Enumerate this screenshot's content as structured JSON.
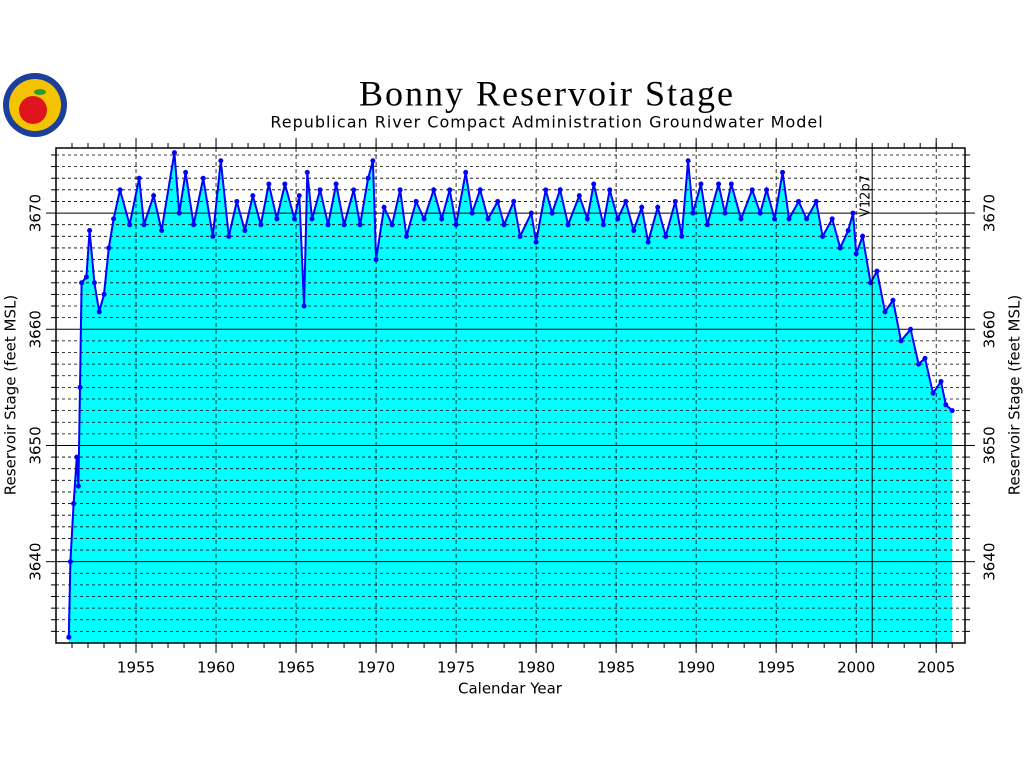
{
  "chart_data": {
    "type": "line",
    "title": "Bonny Reservoir Stage",
    "subtitle": "Republican River Compact Administration Groundwater Model",
    "x_label": "Calendar Year",
    "y_label": "Reservoir Stage (feet MSL)",
    "color": "#0000ff",
    "fill_color": "#00ffff",
    "grid": true,
    "xlim": [
      1950,
      2006.8
    ],
    "ylim": [
      3633,
      3675.6
    ],
    "xticks": [
      1955,
      1960,
      1965,
      1970,
      1975,
      1980,
      1985,
      1990,
      1995,
      2000,
      2005
    ],
    "yticks": [
      3640,
      3650,
      3660,
      3670
    ],
    "xticks_minor": [
      1951,
      1952,
      1953,
      1954,
      1955,
      1956,
      1957,
      1958,
      1959,
      1960,
      1961,
      1962,
      1963,
      1964,
      1965,
      1966,
      1967,
      1968,
      1969,
      1970,
      1971,
      1972,
      1973,
      1974,
      1975,
      1976,
      1977,
      1978,
      1979,
      1980,
      1981,
      1982,
      1983,
      1984,
      1985,
      1986,
      1987,
      1988,
      1989,
      1990,
      1991,
      1992,
      1993,
      1994,
      1995,
      1996,
      1997,
      1998,
      1999,
      2000,
      2001,
      2002,
      2003,
      2004,
      2005,
      2006
    ],
    "yticks_minor": [
      3634,
      3635,
      3636,
      3637,
      3638,
      3639,
      3641,
      3642,
      3643,
      3644,
      3645,
      3646,
      3647,
      3648,
      3649,
      3651,
      3652,
      3653,
      3654,
      3655,
      3656,
      3657,
      3658,
      3659,
      3661,
      3662,
      3663,
      3664,
      3665,
      3666,
      3667,
      3668,
      3669,
      3671,
      3672,
      3673,
      3674,
      3675
    ],
    "annotation": {
      "text": "V12p7",
      "x": 2001
    },
    "x": [
      1950.8,
      1950.9,
      1951.1,
      1951.3,
      1951.4,
      1951.5,
      1951.6,
      1951.9,
      1952.1,
      1952.4,
      1952.7,
      1953.0,
      1953.3,
      1953.6,
      1954.0,
      1954.6,
      1955.2,
      1955.5,
      1956.1,
      1956.6,
      1957.4,
      1957.7,
      1958.1,
      1958.6,
      1959.2,
      1959.8,
      1960.3,
      1960.8,
      1961.3,
      1961.8,
      1962.3,
      1962.8,
      1963.3,
      1963.8,
      1964.3,
      1964.9,
      1965.2,
      1965.5,
      1965.7,
      1966.0,
      1966.5,
      1967.0,
      1967.5,
      1968.0,
      1968.6,
      1969.0,
      1969.5,
      1969.8,
      1970.0,
      1970.5,
      1971.0,
      1971.5,
      1971.9,
      1972.5,
      1973.0,
      1973.6,
      1974.1,
      1974.6,
      1975.0,
      1975.6,
      1976.0,
      1976.5,
      1977.0,
      1977.6,
      1978.0,
      1978.6,
      1979.0,
      1979.7,
      1980.0,
      1980.6,
      1981.0,
      1981.5,
      1982.0,
      1982.7,
      1983.2,
      1983.6,
      1984.2,
      1984.6,
      1985.1,
      1985.6,
      1986.1,
      1986.6,
      1987.0,
      1987.6,
      1988.1,
      1988.7,
      1989.1,
      1989.5,
      1989.8,
      1990.3,
      1990.7,
      1991.4,
      1991.8,
      1992.2,
      1992.8,
      1993.5,
      1994.0,
      1994.4,
      1994.9,
      1995.4,
      1995.8,
      1996.4,
      1996.9,
      1997.5,
      1997.9,
      1998.5,
      1999.0,
      1999.5,
      1999.8,
      2000.0,
      2000.4,
      2000.9,
      2001.3,
      2001.8,
      2002.3,
      2002.8,
      2003.4,
      2003.9,
      2004.3,
      2004.8,
      2005.3,
      2005.6,
      2006.0
    ],
    "values": [
      3633.5,
      3640,
      3645,
      3649,
      3646.5,
      3655,
      3664,
      3664.5,
      3668.5,
      3664,
      3661.5,
      3663,
      3667,
      3669.5,
      3672,
      3669,
      3673,
      3669,
      3671.5,
      3668.5,
      3675.2,
      3670,
      3673.5,
      3669,
      3673,
      3668,
      3674.5,
      3668,
      3671,
      3668.5,
      3671.5,
      3669,
      3672.5,
      3669.5,
      3672.5,
      3669.5,
      3671.5,
      3662,
      3673.5,
      3669.5,
      3672,
      3669,
      3672.5,
      3669,
      3672,
      3669,
      3673,
      3674.5,
      3666,
      3670.5,
      3669,
      3672,
      3668,
      3671,
      3669.5,
      3672,
      3669.5,
      3672,
      3669,
      3673.5,
      3670,
      3672,
      3669.5,
      3671,
      3669,
      3671,
      3668,
      3670,
      3667.5,
      3672,
      3670,
      3672,
      3669,
      3671.5,
      3669.5,
      3672.5,
      3669,
      3672,
      3669.5,
      3671,
      3668.5,
      3670.5,
      3667.5,
      3670.5,
      3668,
      3671,
      3668,
      3674.5,
      3670,
      3672.5,
      3669,
      3672.5,
      3670,
      3672.5,
      3669.5,
      3672,
      3670,
      3672,
      3669.5,
      3673.5,
      3669.5,
      3671,
      3669.5,
      3671,
      3668,
      3669.5,
      3667,
      3668.5,
      3670,
      3666.5,
      3668,
      3664,
      3665,
      3661.5,
      3662.5,
      3659,
      3660,
      3657,
      3657.5,
      3654.5,
      3655.5,
      3653.5,
      3653
    ]
  }
}
